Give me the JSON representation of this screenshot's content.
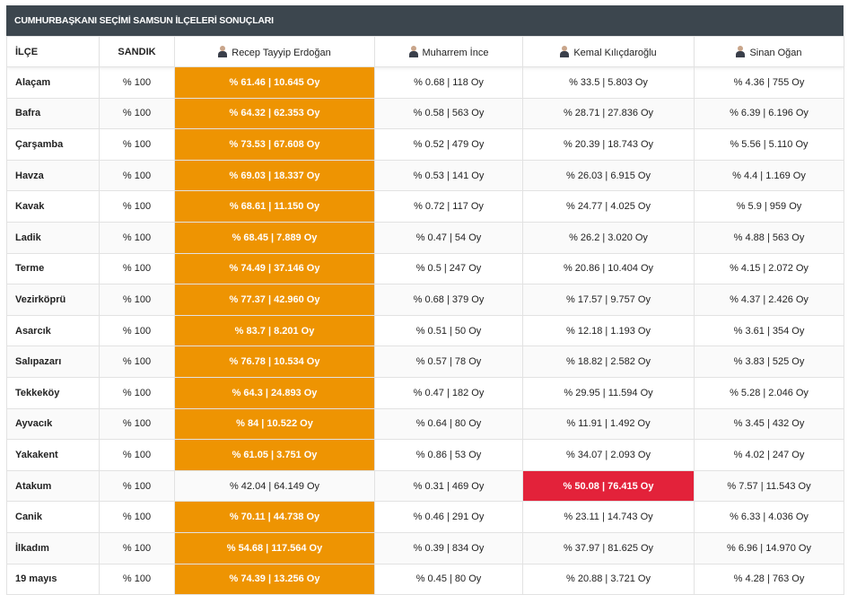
{
  "title": "CUMHURBAŞKANI SEÇİMİ SAMSUN İLÇELERİ SONUÇLARI",
  "colors": {
    "erdogan_win": "#ee9402",
    "kilicdaroglu_win": "#e3223a",
    "title_bg": "#3c464e"
  },
  "headers": {
    "district": "İLÇE",
    "ballot": "SANDIK",
    "candidates": [
      "Recep Tayyip Erdoğan",
      "Muharrem İnce",
      "Kemal Kılıçdaroğlu",
      "Sinan Oğan"
    ]
  },
  "rows": [
    {
      "district": "Alaçam",
      "ballot": "% 100",
      "results": [
        "% 61.46 | 10.645 Oy",
        "% 0.68 | 118 Oy",
        "% 33.5 | 5.803 Oy",
        "% 4.36 | 755 Oy"
      ],
      "winner": 0
    },
    {
      "district": "Bafra",
      "ballot": "% 100",
      "results": [
        "% 64.32 | 62.353 Oy",
        "% 0.58 | 563 Oy",
        "% 28.71 | 27.836 Oy",
        "% 6.39 | 6.196 Oy"
      ],
      "winner": 0
    },
    {
      "district": "Çarşamba",
      "ballot": "% 100",
      "results": [
        "% 73.53 | 67.608 Oy",
        "% 0.52 | 479 Oy",
        "% 20.39 | 18.743 Oy",
        "% 5.56 | 5.110 Oy"
      ],
      "winner": 0
    },
    {
      "district": "Havza",
      "ballot": "% 100",
      "results": [
        "% 69.03 | 18.337 Oy",
        "% 0.53 | 141 Oy",
        "% 26.03 | 6.915 Oy",
        "% 4.4 | 1.169 Oy"
      ],
      "winner": 0
    },
    {
      "district": "Kavak",
      "ballot": "% 100",
      "results": [
        "% 68.61 | 11.150 Oy",
        "% 0.72 | 117 Oy",
        "% 24.77 | 4.025 Oy",
        "% 5.9 | 959 Oy"
      ],
      "winner": 0
    },
    {
      "district": "Ladik",
      "ballot": "% 100",
      "results": [
        "% 68.45 | 7.889 Oy",
        "% 0.47 | 54 Oy",
        "% 26.2 | 3.020 Oy",
        "% 4.88 | 563 Oy"
      ],
      "winner": 0
    },
    {
      "district": "Terme",
      "ballot": "% 100",
      "results": [
        "% 74.49 | 37.146 Oy",
        "% 0.5 | 247 Oy",
        "% 20.86 | 10.404 Oy",
        "% 4.15 | 2.072 Oy"
      ],
      "winner": 0
    },
    {
      "district": "Vezirköprü",
      "ballot": "% 100",
      "results": [
        "% 77.37 | 42.960 Oy",
        "% 0.68 | 379 Oy",
        "% 17.57 | 9.757 Oy",
        "% 4.37 | 2.426 Oy"
      ],
      "winner": 0
    },
    {
      "district": "Asarcık",
      "ballot": "% 100",
      "results": [
        "% 83.7 | 8.201 Oy",
        "% 0.51 | 50 Oy",
        "% 12.18 | 1.193 Oy",
        "% 3.61 | 354 Oy"
      ],
      "winner": 0
    },
    {
      "district": "Salıpazarı",
      "ballot": "% 100",
      "results": [
        "% 76.78 | 10.534 Oy",
        "% 0.57 | 78 Oy",
        "% 18.82 | 2.582 Oy",
        "% 3.83 | 525 Oy"
      ],
      "winner": 0
    },
    {
      "district": "Tekkeköy",
      "ballot": "% 100",
      "results": [
        "% 64.3 | 24.893 Oy",
        "% 0.47 | 182 Oy",
        "% 29.95 | 11.594 Oy",
        "% 5.28 | 2.046 Oy"
      ],
      "winner": 0
    },
    {
      "district": "Ayvacık",
      "ballot": "% 100",
      "results": [
        "% 84 | 10.522 Oy",
        "% 0.64 | 80 Oy",
        "% 11.91 | 1.492 Oy",
        "% 3.45 | 432 Oy"
      ],
      "winner": 0
    },
    {
      "district": "Yakakent",
      "ballot": "% 100",
      "results": [
        "% 61.05 | 3.751 Oy",
        "% 0.86 | 53 Oy",
        "% 34.07 | 2.093 Oy",
        "% 4.02 | 247 Oy"
      ],
      "winner": 0
    },
    {
      "district": "Atakum",
      "ballot": "% 100",
      "results": [
        "% 42.04 | 64.149 Oy",
        "% 0.31 | 469 Oy",
        "% 50.08 | 76.415 Oy",
        "% 7.57 | 11.543 Oy"
      ],
      "winner": 2
    },
    {
      "district": "Canik",
      "ballot": "% 100",
      "results": [
        "% 70.11 | 44.738 Oy",
        "% 0.46 | 291 Oy",
        "% 23.11 | 14.743 Oy",
        "% 6.33 | 4.036 Oy"
      ],
      "winner": 0
    },
    {
      "district": "İlkadım",
      "ballot": "% 100",
      "results": [
        "% 54.68 | 117.564 Oy",
        "% 0.39 | 834 Oy",
        "% 37.97 | 81.625 Oy",
        "% 6.96 | 14.970 Oy"
      ],
      "winner": 0
    },
    {
      "district": "19 mayıs",
      "ballot": "% 100",
      "results": [
        "% 74.39 | 13.256 Oy",
        "% 0.45 | 80 Oy",
        "% 20.88 | 3.721 Oy",
        "% 4.28 | 763 Oy"
      ],
      "winner": 0
    }
  ]
}
